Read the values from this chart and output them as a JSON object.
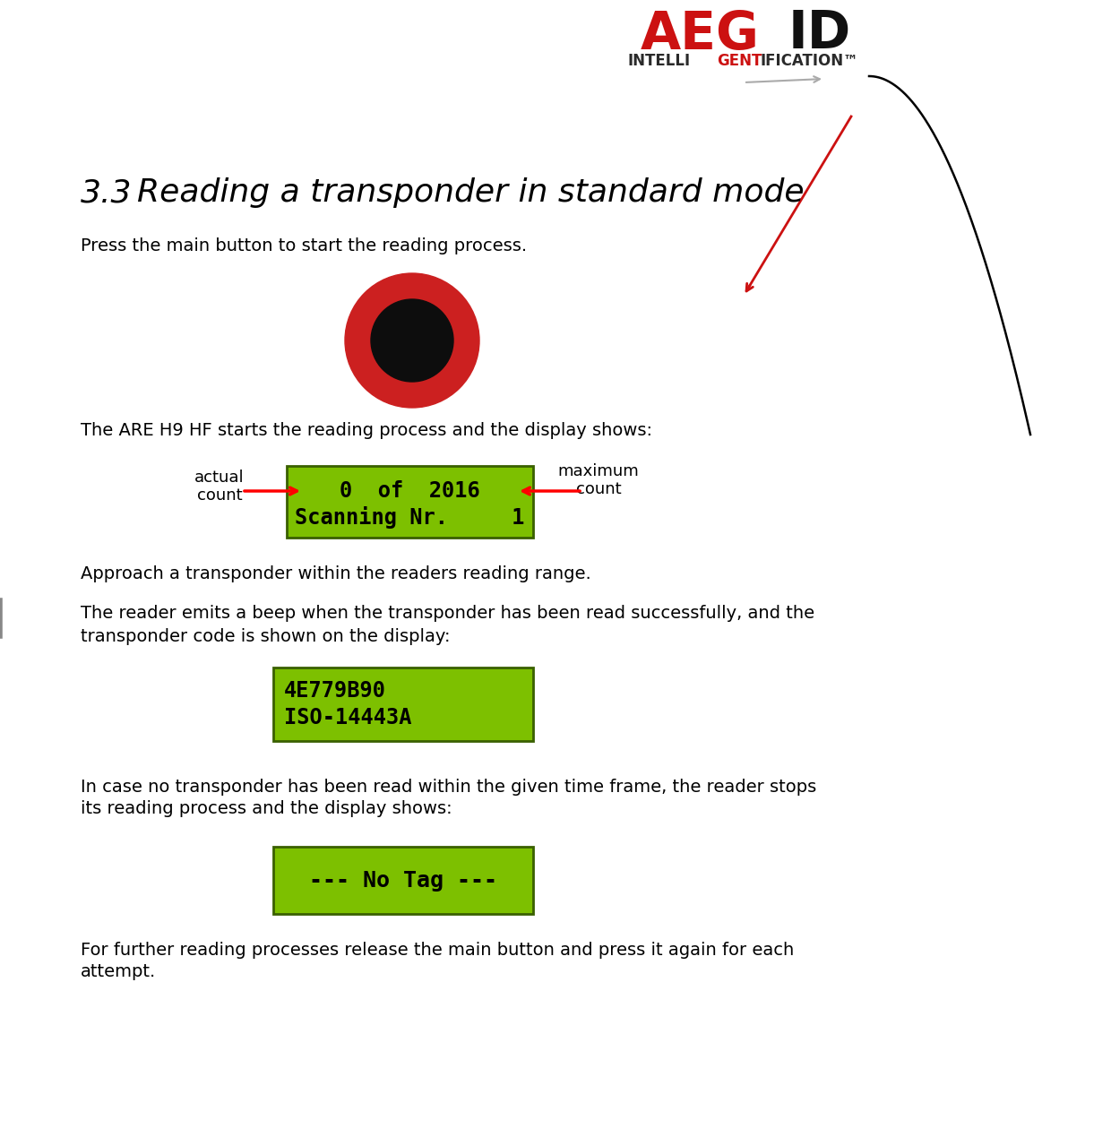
{
  "bg_color": "#ffffff",
  "text_color": "#000000",
  "green_bg": "#7dc000",
  "green_border": "#3a6000",
  "red_button_outer": "#cc2020",
  "black_circle": "#0d0d0d",
  "logo_red": "#cc1111",
  "logo_black": "#111111",
  "logo_dark": "#2a2a2a",
  "para1": "Press the main button to start the reading process.",
  "para2": "The ARE H9 HF starts the reading process and the display shows:",
  "para3": "Approach a transponder within the readers reading range.",
  "para4a": "The reader emits a beep when the transponder has been read successfully, and the",
  "para4b": "transponder code is shown on the display:",
  "para5a": "In case no transponder has been read within the given time frame, the reader stops",
  "para5b": "its reading process and the display shows:",
  "para6a": "For further reading processes release the main button and press it again for each",
  "para6b": "attempt.",
  "display1_line1": "0  of  2016",
  "display1_line2": "Scanning Nr.     1",
  "display2_line1": "4E779B90",
  "display2_line2": "ISO-14443A",
  "display3_line1": "--- No Tag ---",
  "label_actual": "actual\ncount",
  "label_maximum": "maximum\ncount",
  "title_number": "3.3",
  "title_text": "  Reading a transponder in standard mode"
}
